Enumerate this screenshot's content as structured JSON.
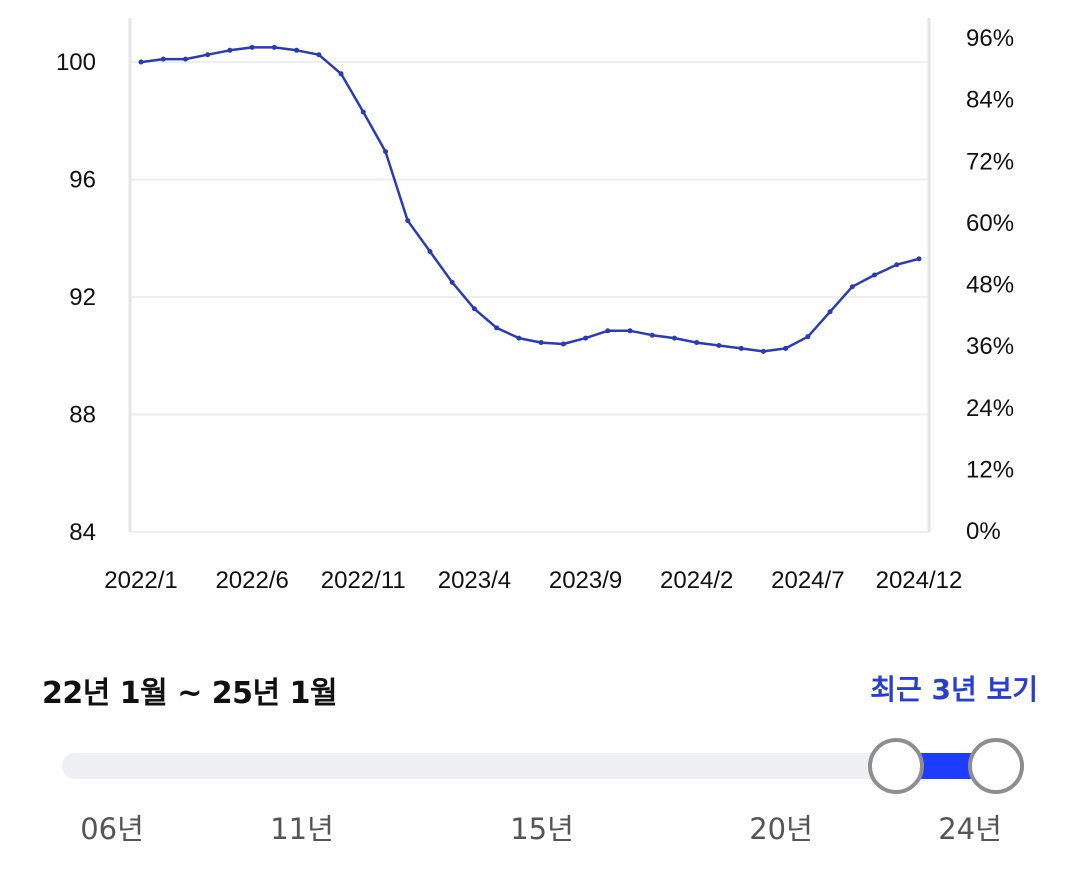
{
  "chart_data": {
    "type": "line",
    "x": [
      "2022/1",
      "2022/2",
      "2022/3",
      "2022/4",
      "2022/5",
      "2022/6",
      "2022/7",
      "2022/8",
      "2022/9",
      "2022/10",
      "2022/11",
      "2022/12",
      "2023/1",
      "2023/2",
      "2023/3",
      "2023/4",
      "2023/5",
      "2023/6",
      "2023/7",
      "2023/8",
      "2023/9",
      "2023/10",
      "2023/11",
      "2023/12",
      "2024/1",
      "2024/2",
      "2024/3",
      "2024/4",
      "2024/5",
      "2024/6",
      "2024/7",
      "2024/8",
      "2024/9",
      "2024/10",
      "2024/11",
      "2024/12"
    ],
    "series": [
      {
        "values": [
          100.0,
          100.1,
          100.1,
          100.25,
          100.4,
          100.5,
          100.5,
          100.4,
          100.25,
          99.6,
          98.3,
          96.95,
          94.6,
          93.55,
          92.5,
          91.6,
          90.95,
          90.6,
          90.45,
          90.4,
          90.6,
          90.85,
          90.85,
          90.7,
          90.6,
          90.45,
          90.35,
          90.25,
          90.15,
          90.25,
          90.65,
          91.5,
          92.35,
          92.75,
          93.1,
          93.3
        ],
        "color": "#2b3bb5"
      }
    ],
    "x_tick_labels": [
      "2022/1",
      "2022/6",
      "2022/11",
      "2023/4",
      "2023/9",
      "2024/2",
      "2024/7",
      "2024/12"
    ],
    "y_left_ticks": [
      "84",
      "88",
      "92",
      "96",
      "100"
    ],
    "y_left_range": [
      84,
      101.5
    ],
    "y_right_ticks": [
      "0%",
      "12%",
      "24%",
      "36%",
      "48%",
      "60%",
      "72%",
      "84%",
      "96%"
    ],
    "y_right_range": [
      0,
      96
    ],
    "grid": "horizontal",
    "title": "",
    "xlabel": "",
    "ylabel": ""
  },
  "range_label": "22년 1월 ~ 25년 1월",
  "recent_link": "최근 3년 보기",
  "slider": {
    "year_labels": [
      "06년",
      "11년",
      "15년",
      "20년",
      "24년"
    ],
    "fill_color": "#1e3cff",
    "selected_start": "22년 1월",
    "selected_end": "25년 1월"
  }
}
